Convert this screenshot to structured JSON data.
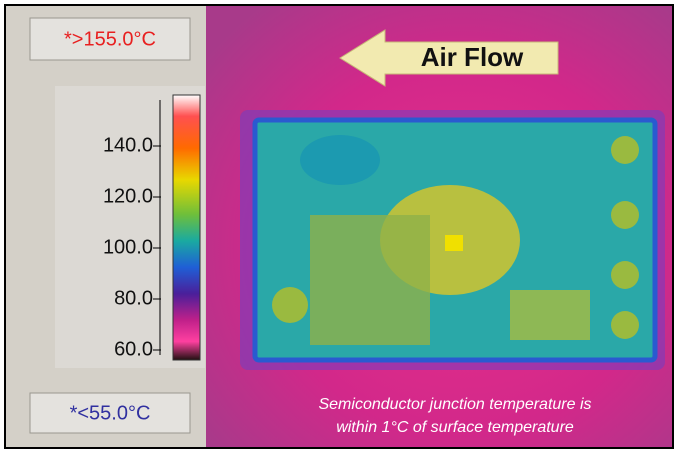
{
  "range": {
    "max_label": "*>155.0°C",
    "min_label": "*<55.0°C"
  },
  "scale": {
    "ticks": [
      "140.0",
      "120.0",
      "100.0",
      "80.0",
      "60.0"
    ]
  },
  "annotation": "Air Flow",
  "caption": [
    "Semiconductor junction temperature is",
    "within 1°C of surface temperature"
  ]
}
